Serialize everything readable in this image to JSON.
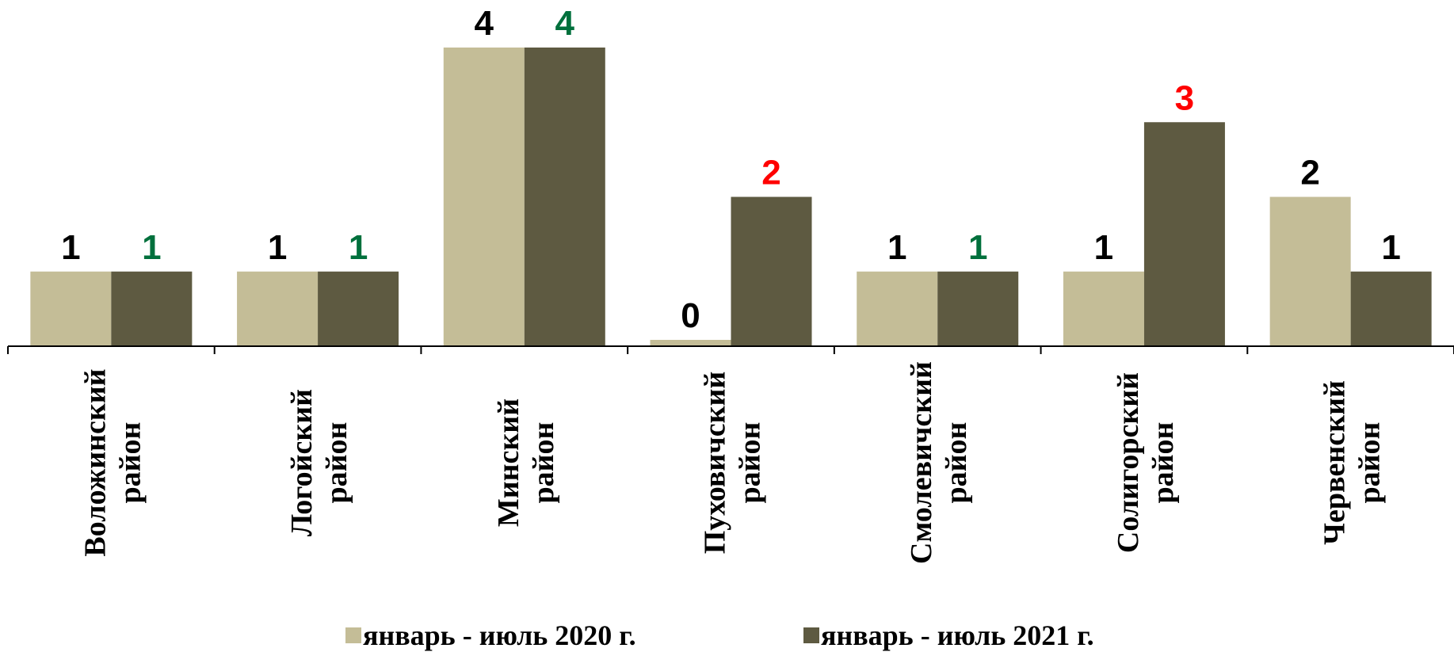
{
  "chart_data": {
    "type": "bar",
    "categories": [
      [
        "Воложинский",
        "район"
      ],
      [
        "Логойский",
        "район"
      ],
      [
        "Минский",
        "район"
      ],
      [
        "Пуховичский",
        "район"
      ],
      [
        "Смолевичский",
        "район"
      ],
      [
        "Солигорский",
        "район"
      ],
      [
        "Червенский",
        "район"
      ]
    ],
    "series": [
      {
        "name": "январь - июль 2020 г.",
        "color": "#C4BD97",
        "values": [
          1,
          1,
          4,
          0,
          1,
          1,
          2
        ],
        "label_colors": [
          "#000000",
          "#000000",
          "#000000",
          "#000000",
          "#000000",
          "#000000",
          "#000000"
        ]
      },
      {
        "name": "январь - июль 2021 г.",
        "color": "#5E5A41",
        "values": [
          1,
          1,
          4,
          2,
          1,
          3,
          1
        ],
        "label_colors": [
          "#00703C",
          "#00703C",
          "#00703C",
          "#FF0000",
          "#00703C",
          "#FF0000",
          "#000000"
        ]
      }
    ],
    "ylim": [
      0,
      4.2
    ],
    "grid": false,
    "legend": "bottom"
  }
}
